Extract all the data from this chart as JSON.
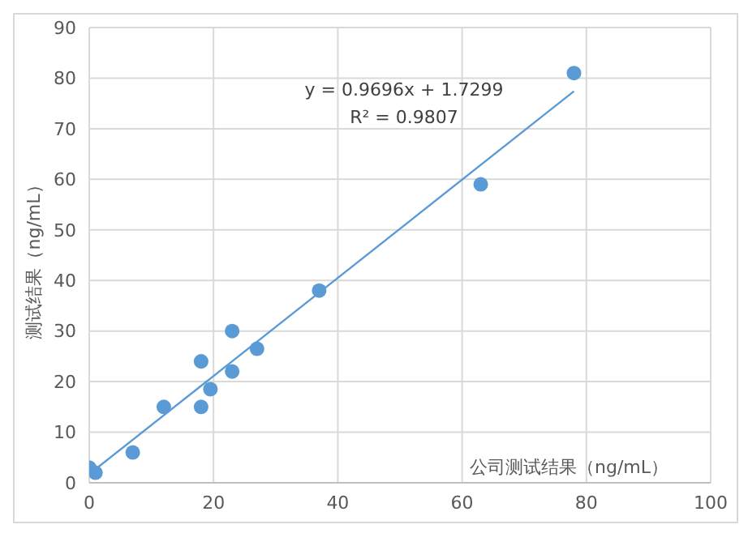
{
  "chart_data": {
    "type": "scatter",
    "xlabel": "公司测试结果（ng/mL）",
    "ylabel": "测试结果（ng/mL）",
    "series": [
      {
        "type": "scatter",
        "color": "#5b9bd5",
        "marker": "circle",
        "x": [
          0,
          1,
          7,
          12,
          18,
          18,
          19.5,
          23,
          23,
          27,
          37,
          63,
          78
        ],
        "values": [
          3,
          2,
          6,
          15,
          15,
          24,
          18.5,
          30,
          22,
          26.5,
          38,
          59,
          81
        ]
      },
      {
        "type": "line",
        "color": "#5b9bd5",
        "marker": "none",
        "x": [
          0,
          78
        ],
        "values": [
          1.7,
          77.4
        ]
      }
    ],
    "annotations": [
      "y = 0.9696x + 1.7299",
      "R² = 0.9807"
    ],
    "xlim": [
      0,
      100
    ],
    "xticks": [
      0,
      20,
      40,
      60,
      80,
      100
    ],
    "ylim": [
      0,
      90
    ],
    "yticks": [
      0,
      10,
      20,
      30,
      40,
      50,
      60,
      70,
      80,
      90
    ],
    "grid": true,
    "legend": false
  }
}
